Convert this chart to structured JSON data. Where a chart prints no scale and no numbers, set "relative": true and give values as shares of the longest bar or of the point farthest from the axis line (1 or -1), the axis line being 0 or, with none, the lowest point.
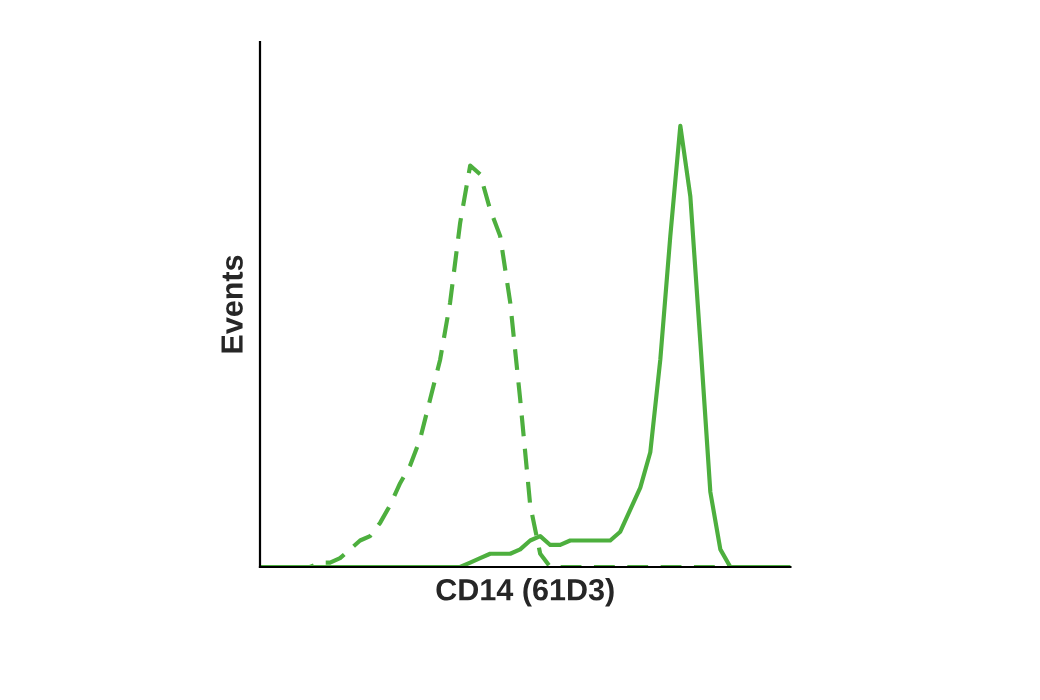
{
  "chart_data": {
    "type": "line",
    "xlabel": "CD14 (61D3)",
    "ylabel": "Events",
    "relative": true,
    "tick_labels": false,
    "grid": false,
    "legend": false,
    "marker": "none",
    "categories": [
      null,
      null,
      null,
      null,
      null,
      null,
      null,
      null,
      null,
      null,
      null,
      null,
      null,
      null,
      null,
      null,
      null,
      null,
      null,
      null,
      null,
      null,
      null,
      null,
      null,
      null,
      null,
      null,
      null,
      null,
      null,
      null,
      null,
      null,
      null,
      null,
      null,
      null,
      null,
      null,
      null,
      null,
      null,
      null,
      null,
      null,
      null,
      null,
      null,
      null,
      null,
      null,
      null,
      null
    ],
    "series": [
      {
        "color": "#4daf3e",
        "line_style": "dashed",
        "values": [
          0,
          0,
          0,
          0,
          0,
          0,
          0.01,
          0.01,
          0.02,
          0.04,
          0.06,
          0.07,
          0.1,
          0.14,
          0.19,
          0.23,
          0.29,
          0.38,
          0.47,
          0.6,
          0.78,
          0.91,
          0.89,
          0.81,
          0.75,
          0.6,
          0.38,
          0.14,
          0.03,
          0,
          0,
          0,
          0,
          0,
          0,
          0,
          0,
          0,
          0,
          0,
          0,
          0,
          0,
          0,
          0,
          0,
          0,
          0,
          0,
          0,
          0,
          0,
          0,
          0
        ]
      },
      {
        "color": "#4daf3e",
        "line_style": "solid",
        "values": [
          0,
          0,
          0,
          0,
          0,
          0,
          0,
          0,
          0,
          0,
          0,
          0,
          0,
          0,
          0,
          0,
          0,
          0,
          0,
          0,
          0,
          0.01,
          0.02,
          0.03,
          0.03,
          0.03,
          0.04,
          0.06,
          0.07,
          0.05,
          0.05,
          0.06,
          0.06,
          0.06,
          0.06,
          0.06,
          0.08,
          0.13,
          0.18,
          0.26,
          0.47,
          0.75,
          1,
          0.84,
          0.51,
          0.17,
          0.04,
          0,
          0,
          0,
          0,
          0,
          0,
          0
        ]
      }
    ]
  }
}
